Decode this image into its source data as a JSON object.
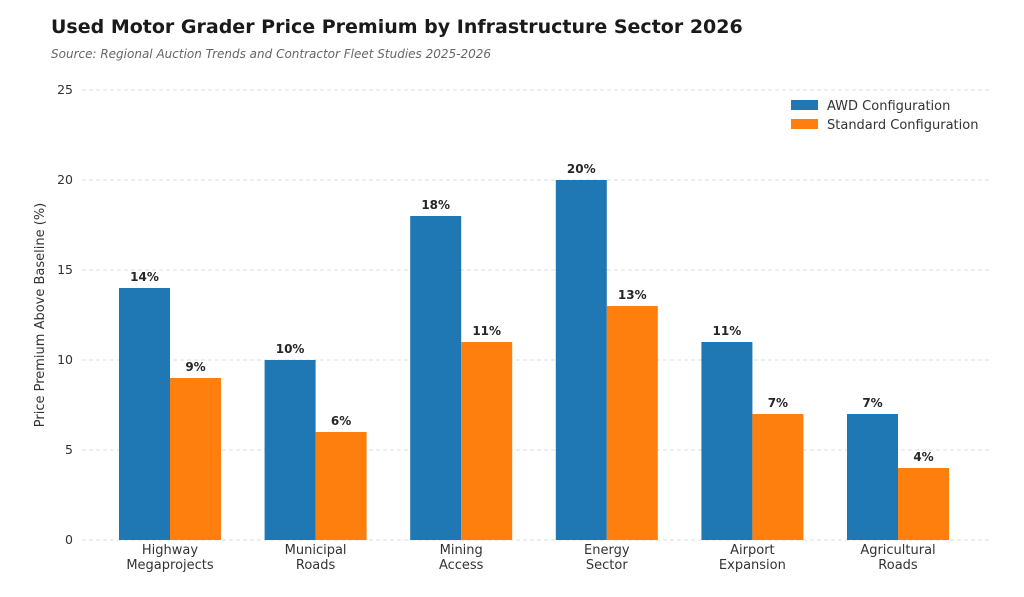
{
  "title": "Used Motor Grader Price Premium by Infrastructure Sector 2026",
  "subtitle": "Source: Regional Auction Trends and Contractor Fleet Studies 2025-2026",
  "chart_data": {
    "type": "bar",
    "categories": [
      [
        "Highway",
        "Megaprojects"
      ],
      [
        "Municipal",
        "Roads"
      ],
      [
        "Mining",
        "Access"
      ],
      [
        "Energy",
        "Sector"
      ],
      [
        "Airport",
        "Expansion"
      ],
      [
        "Agricultural",
        "Roads"
      ]
    ],
    "series": [
      {
        "name": "AWD Configuration",
        "values": [
          14,
          10,
          18,
          20,
          11,
          7
        ],
        "color": "#1f77b4"
      },
      {
        "name": "Standard Configuration",
        "values": [
          9,
          6,
          11,
          13,
          7,
          4
        ],
        "color": "#ff7f0e"
      }
    ],
    "ylabel": "Price Premium Above Baseline (%)",
    "xlabel": "",
    "ylim": [
      0,
      25
    ],
    "yticks": [
      0,
      5,
      10,
      15,
      20,
      25
    ],
    "value_suffix": "%",
    "grid": true,
    "legend_position": "top-right"
  }
}
